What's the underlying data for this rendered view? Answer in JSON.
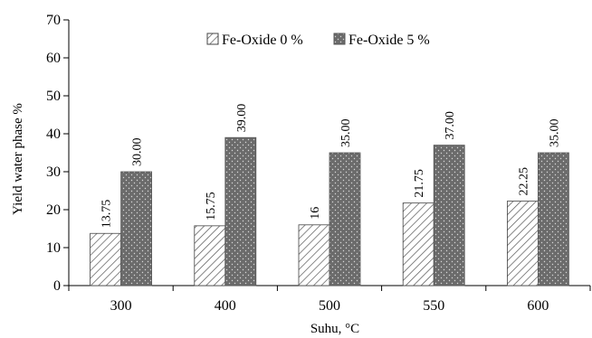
{
  "chart_data": {
    "type": "bar",
    "title": "",
    "xlabel": "Suhu, °C",
    "ylabel": "Yield water phase %",
    "categories": [
      "300",
      "400",
      "500",
      "550",
      "600"
    ],
    "ylim": [
      0,
      70
    ],
    "yticks": [
      0,
      10,
      20,
      30,
      40,
      50,
      60,
      70
    ],
    "grid": false,
    "legend_position": "top",
    "series": [
      {
        "name": "Fe-Oxide 0 %",
        "values": [
          13.75,
          15.75,
          16,
          21.75,
          22.25
        ],
        "labels": [
          "13.75",
          "15.75",
          "16",
          "21.75",
          "22.25"
        ],
        "pattern": "diagonal-hatch",
        "color": "#ffffff",
        "stroke": "#444444"
      },
      {
        "name": "Fe-Oxide 5 %",
        "values": [
          30.0,
          39.0,
          35.0,
          37.0,
          35.0
        ],
        "labels": [
          "30.00",
          "39.00",
          "35.00",
          "37.00",
          "35.00"
        ],
        "pattern": "dotted",
        "color": "#6b6b6b",
        "stroke": "#555555"
      }
    ]
  }
}
